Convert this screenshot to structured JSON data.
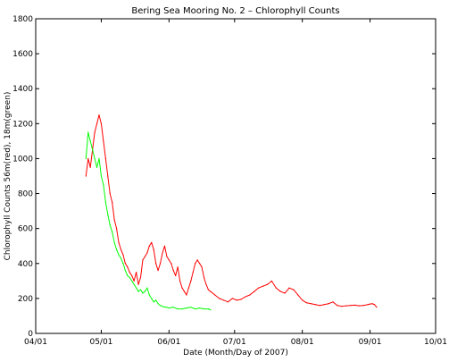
{
  "chart_data": {
    "type": "line",
    "title": "Bering Sea Mooring No. 2 – Chlorophyll Counts",
    "xlabel": "Date (Month/Day of 2007)",
    "ylabel": "Chlorophyll Counts 56m(red), 18m(green)",
    "xlim": [
      "2007-04-01",
      "2007-10-01"
    ],
    "ylim": [
      0,
      1800
    ],
    "x_ticks": [
      "2007-04-01",
      "2007-05-01",
      "2007-06-01",
      "2007-07-01",
      "2007-08-01",
      "2007-09-01",
      "2007-10-01"
    ],
    "x_tick_labels": [
      "04/01",
      "05/01",
      "06/01",
      "07/01",
      "08/01",
      "09/01",
      "10/01"
    ],
    "y_ticks": [
      0,
      200,
      400,
      600,
      800,
      1000,
      1200,
      1400,
      1600,
      1800
    ],
    "y_tick_labels": [
      "0",
      "200",
      "400",
      "600",
      "800",
      "1000",
      "1200",
      "1400",
      "1600",
      "1800"
    ],
    "grid": false,
    "legend": "none",
    "series": [
      {
        "depth": "56m",
        "color": "#ff0000",
        "x": [
          "2007-04-24",
          "2007-04-25",
          "2007-04-26",
          "2007-04-27",
          "2007-04-28",
          "2007-04-29",
          "2007-04-30",
          "2007-05-01",
          "2007-05-02",
          "2007-05-03",
          "2007-05-04",
          "2007-05-05",
          "2007-05-06",
          "2007-05-07",
          "2007-05-08",
          "2007-05-09",
          "2007-05-10",
          "2007-05-11",
          "2007-05-12",
          "2007-05-13",
          "2007-05-14",
          "2007-05-15",
          "2007-05-16",
          "2007-05-17",
          "2007-05-18",
          "2007-05-19",
          "2007-05-20",
          "2007-05-21",
          "2007-05-22",
          "2007-05-23",
          "2007-05-24",
          "2007-05-25",
          "2007-05-26",
          "2007-05-27",
          "2007-05-28",
          "2007-05-29",
          "2007-05-30",
          "2007-05-31",
          "2007-06-01",
          "2007-06-02",
          "2007-06-03",
          "2007-06-04",
          "2007-06-05",
          "2007-06-06",
          "2007-06-07",
          "2007-06-08",
          "2007-06-09",
          "2007-06-10",
          "2007-06-11",
          "2007-06-12",
          "2007-06-13",
          "2007-06-14",
          "2007-06-15",
          "2007-06-16",
          "2007-06-17",
          "2007-06-18",
          "2007-06-19",
          "2007-06-20",
          "2007-06-22",
          "2007-06-24",
          "2007-06-26",
          "2007-06-28",
          "2007-06-30",
          "2007-07-02",
          "2007-07-04",
          "2007-07-06",
          "2007-07-08",
          "2007-07-10",
          "2007-07-12",
          "2007-07-14",
          "2007-07-16",
          "2007-07-18",
          "2007-07-20",
          "2007-07-22",
          "2007-07-24",
          "2007-07-26",
          "2007-07-28",
          "2007-07-30",
          "2007-08-01",
          "2007-08-03",
          "2007-08-05",
          "2007-08-07",
          "2007-08-09",
          "2007-08-11",
          "2007-08-13",
          "2007-08-15",
          "2007-08-17",
          "2007-08-19",
          "2007-08-21",
          "2007-08-23",
          "2007-08-25",
          "2007-08-27",
          "2007-08-29",
          "2007-08-31",
          "2007-09-01",
          "2007-09-02",
          "2007-09-03",
          "2007-09-04"
        ],
        "y": [
          900,
          1000,
          950,
          1050,
          1150,
          1200,
          1250,
          1200,
          1100,
          1000,
          900,
          800,
          750,
          650,
          600,
          520,
          480,
          450,
          400,
          380,
          350,
          330,
          300,
          350,
          280,
          320,
          420,
          440,
          460,
          500,
          520,
          480,
          400,
          360,
          400,
          460,
          500,
          440,
          420,
          400,
          360,
          330,
          380,
          300,
          260,
          240,
          220,
          260,
          300,
          350,
          400,
          420,
          400,
          380,
          320,
          280,
          250,
          240,
          220,
          200,
          190,
          180,
          200,
          190,
          195,
          210,
          220,
          240,
          260,
          270,
          280,
          300,
          260,
          240,
          230,
          260,
          250,
          220,
          190,
          175,
          170,
          165,
          160,
          165,
          170,
          180,
          160,
          155,
          158,
          160,
          162,
          158,
          160,
          165,
          168,
          170,
          165,
          150
        ]
      },
      {
        "depth": "18m",
        "color": "#00ff00",
        "x": [
          "2007-04-24",
          "2007-04-25",
          "2007-04-26",
          "2007-04-27",
          "2007-04-28",
          "2007-04-29",
          "2007-04-30",
          "2007-05-01",
          "2007-05-02",
          "2007-05-03",
          "2007-05-04",
          "2007-05-05",
          "2007-05-06",
          "2007-05-07",
          "2007-05-08",
          "2007-05-09",
          "2007-05-10",
          "2007-05-11",
          "2007-05-12",
          "2007-05-13",
          "2007-05-14",
          "2007-05-15",
          "2007-05-16",
          "2007-05-17",
          "2007-05-18",
          "2007-05-19",
          "2007-05-20",
          "2007-05-21",
          "2007-05-22",
          "2007-05-23",
          "2007-05-24",
          "2007-05-25",
          "2007-05-26",
          "2007-05-27",
          "2007-05-28",
          "2007-05-29",
          "2007-05-30",
          "2007-05-31",
          "2007-06-01",
          "2007-06-03",
          "2007-06-05",
          "2007-06-07",
          "2007-06-09",
          "2007-06-11",
          "2007-06-13",
          "2007-06-15",
          "2007-06-17",
          "2007-06-19",
          "2007-06-20"
        ],
        "y": [
          1000,
          1150,
          1100,
          1050,
          1000,
          950,
          1000,
          900,
          850,
          750,
          680,
          620,
          580,
          520,
          480,
          450,
          430,
          400,
          360,
          330,
          320,
          300,
          280,
          260,
          240,
          250,
          230,
          240,
          260,
          220,
          200,
          180,
          190,
          170,
          160,
          155,
          150,
          150,
          145,
          150,
          140,
          140,
          145,
          150,
          140,
          145,
          140,
          140,
          135
        ]
      }
    ]
  }
}
